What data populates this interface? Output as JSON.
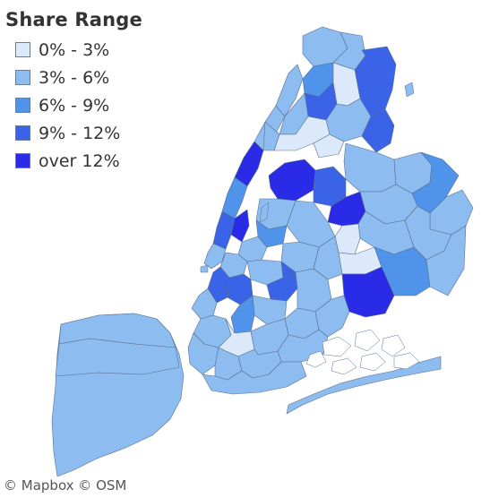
{
  "legend": {
    "title": "Share Range",
    "items": [
      {
        "label": "0% - 3%",
        "color": "#dce9fb"
      },
      {
        "label": "3% - 6%",
        "color": "#8cbcf0"
      },
      {
        "label": "6% - 9%",
        "color": "#4f93ea"
      },
      {
        "label": "9% - 12%",
        "color": "#3b63e8"
      },
      {
        "label": "over 12%",
        "color": "#2a2be6"
      }
    ]
  },
  "attribution": "© Mapbox © OSM",
  "colors": {
    "water": "#ffffff",
    "border": "#5a6f8f",
    "text": "#333333"
  }
}
